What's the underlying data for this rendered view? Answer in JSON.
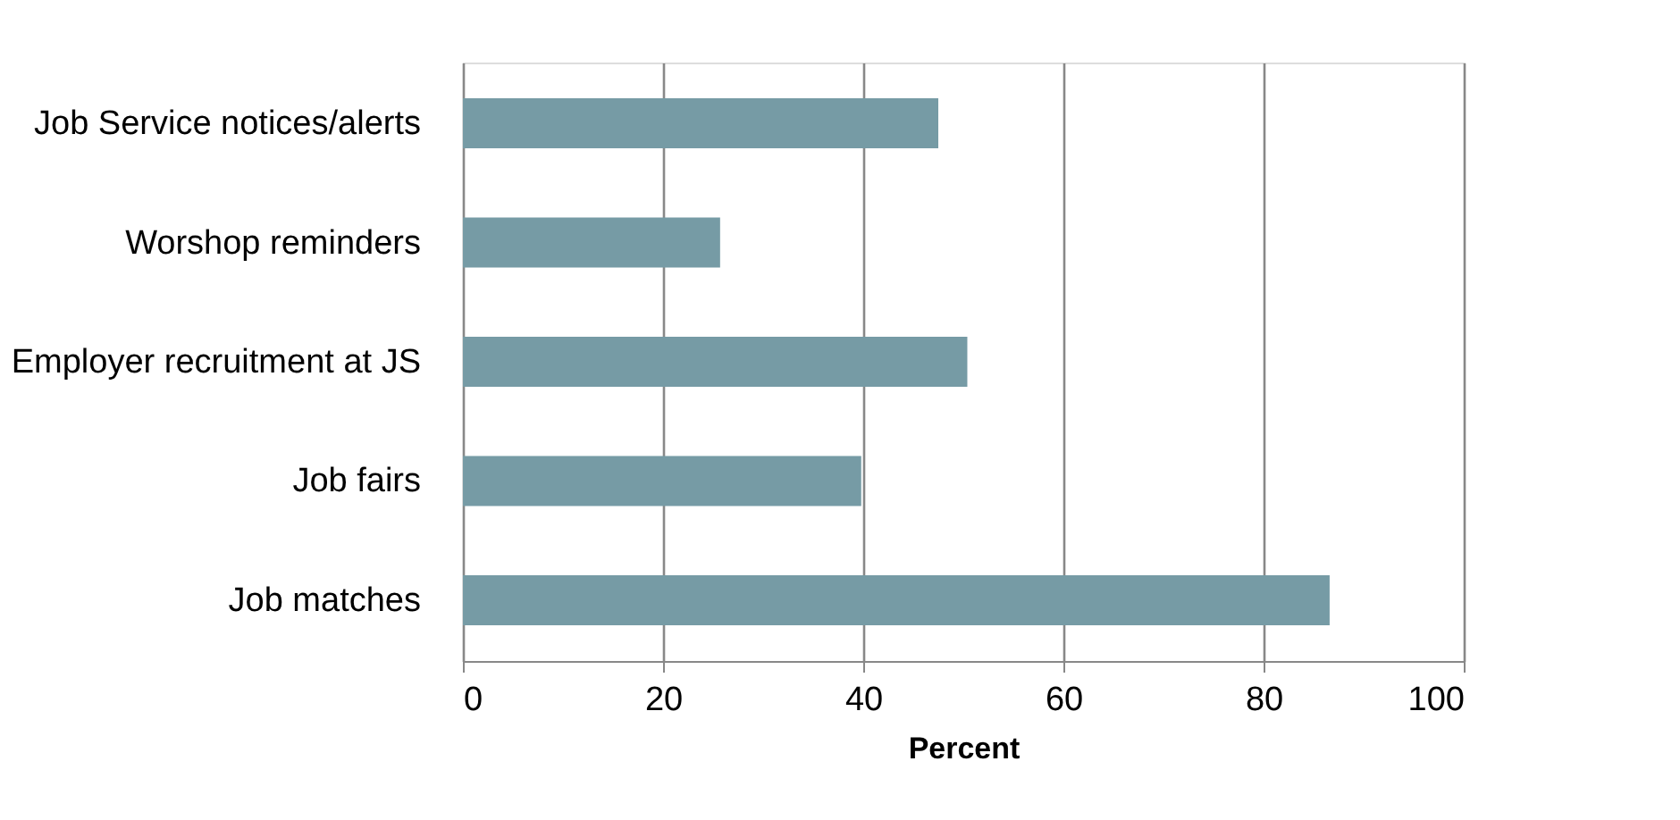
{
  "chart_data": {
    "type": "bar",
    "orientation": "horizontal",
    "xlabel": "Percent",
    "categories": [
      "Job Service notices/alerts",
      "Worshop reminders",
      "Employer recruitment at JS",
      "Job fairs",
      "Job matches"
    ],
    "values": [
      47.5,
      25.7,
      50.4,
      39.8,
      86.6
    ],
    "color": "#769ba5",
    "xlim": [
      0,
      100
    ],
    "xticks": [
      0,
      20,
      40,
      60,
      80,
      100
    ],
    "grid": "x"
  }
}
